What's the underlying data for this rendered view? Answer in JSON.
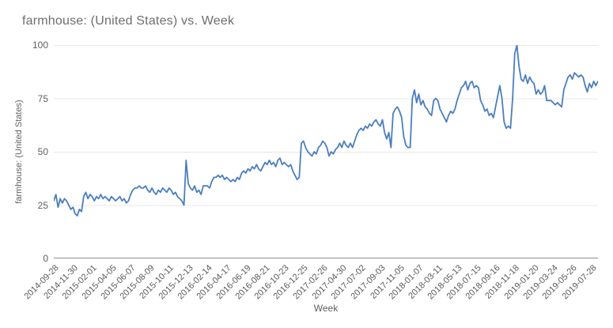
{
  "header": {
    "title": "farmhouse: (United States) vs. Week"
  },
  "chart_data": {
    "type": "line",
    "title": "farmhouse: (United States) vs. Week",
    "xlabel": "Week",
    "ylabel": "farmhouse: (United States)",
    "series_name": "farmhouse: (United States)",
    "legend": "none",
    "grid": "horizontal",
    "ylim": [
      0,
      100
    ],
    "yticks": [
      0,
      25,
      50,
      75,
      100
    ],
    "x_interval": "weekly",
    "xtick_interval_weeks": 9,
    "xticks": [
      "2014-09-28",
      "2014-11-30",
      "2015-02-01",
      "2015-04-05",
      "2015-06-07",
      "2015-08-09",
      "2015-10-11",
      "2015-12-13",
      "2016-02-14",
      "2016-04-17",
      "2016-06-19",
      "2016-08-21",
      "2016-10-23",
      "2016-12-25",
      "2017-02-26",
      "2017-04-30",
      "2017-07-02",
      "2017-09-03",
      "2017-11-05",
      "2018-01-07",
      "2018-03-11",
      "2018-05-13",
      "2018-07-15",
      "2018-09-16",
      "2018-11-18",
      "2019-01-20",
      "2019-03-24",
      "2019-05-26",
      "2019-07-28"
    ],
    "values": [
      27,
      30,
      24,
      28,
      26,
      28,
      27,
      25,
      23,
      24,
      21,
      20,
      23,
      22,
      29,
      31,
      28,
      30,
      29,
      27,
      29,
      28,
      30,
      28,
      29,
      28,
      27,
      29,
      28,
      27,
      28,
      29,
      27,
      28,
      26,
      27,
      30,
      32,
      33,
      33,
      34,
      33,
      33,
      34,
      32,
      31,
      33,
      31,
      30,
      32,
      31,
      33,
      32,
      31,
      33,
      32,
      30,
      31,
      29,
      28,
      27,
      25,
      46,
      35,
      33,
      32,
      34,
      31,
      32,
      30,
      34,
      34,
      34,
      33,
      36,
      38,
      38,
      39,
      38,
      39,
      37,
      38,
      37,
      36,
      37,
      36,
      38,
      37,
      40,
      41,
      40,
      42,
      41,
      43,
      42,
      44,
      42,
      41,
      43,
      45,
      44,
      46,
      44,
      45,
      43,
      46,
      47,
      44,
      45,
      44,
      43,
      44,
      41,
      39,
      37,
      38,
      54,
      55,
      52,
      50,
      49,
      48,
      50,
      49,
      52,
      53,
      55,
      54,
      52,
      48,
      50,
      49,
      51,
      52,
      54,
      52,
      55,
      53,
      52,
      54,
      52,
      55,
      58,
      60,
      61,
      60,
      62,
      61,
      63,
      62,
      64,
      65,
      63,
      62,
      65,
      59,
      56,
      59,
      52,
      68,
      70,
      71,
      69,
      66,
      57,
      53,
      52,
      52,
      75,
      79,
      73,
      77,
      72,
      74,
      71,
      70,
      68,
      67,
      74,
      75,
      74,
      70,
      68,
      66,
      64,
      67,
      69,
      68,
      70,
      74,
      77,
      80,
      81,
      83,
      79,
      82,
      83,
      80,
      81,
      80,
      74,
      72,
      69,
      70,
      67,
      68,
      66,
      71,
      76,
      81,
      75,
      64,
      61,
      62,
      61,
      75,
      96,
      100,
      90,
      84,
      83,
      86,
      82,
      85,
      83,
      82,
      77,
      79,
      77,
      78,
      81,
      74,
      74,
      74,
      73,
      72,
      73,
      72,
      71,
      79,
      82,
      85,
      86,
      84,
      87,
      86,
      85,
      86,
      85,
      81,
      78,
      82,
      80,
      83,
      81,
      83
    ],
    "colors": {
      "line": "#4a7ebf",
      "grid": "#e8e8e8",
      "axis": "#8f8f8f",
      "title_text": "#6e6e6e",
      "tick_text": "#5f5f5f"
    }
  }
}
